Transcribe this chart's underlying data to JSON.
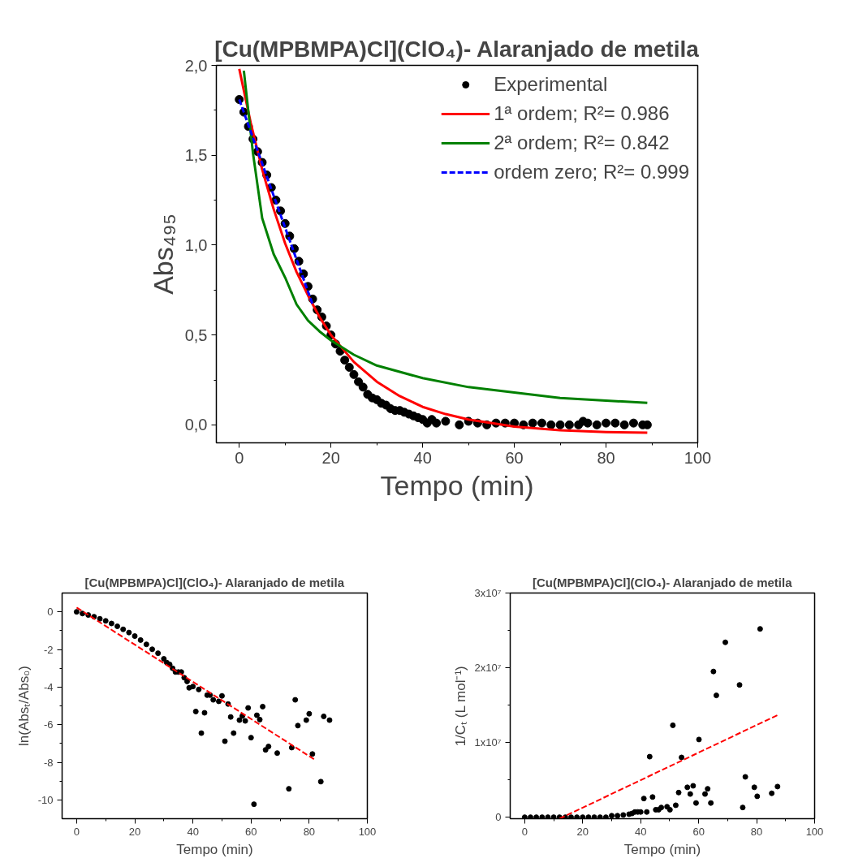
{
  "chart_data": [
    {
      "type": "scatter",
      "title": "[Cu(MPBMPA)Cl](ClO₄)- Alaranjado de metila",
      "xlabel": "Tempo (min)",
      "ylabel": "Abs₄₉₅",
      "xlim": [
        -5,
        100
      ],
      "ylim": [
        -0.1,
        2.0
      ],
      "xticks": [
        0,
        20,
        40,
        60,
        80,
        100
      ],
      "yticks": [
        {
          "value": 0,
          "label": "0,0"
        },
        {
          "value": 0.5,
          "label": "0,5"
        },
        {
          "value": 1.0,
          "label": "1,0"
        },
        {
          "value": 1.5,
          "label": "1,5"
        },
        {
          "value": 2.0,
          "label": "2,0"
        }
      ],
      "grid": false,
      "legend": "top right",
      "series": [
        {
          "name": "Experimental",
          "marker": "circle",
          "color": "#000000",
          "x": [
            0,
            1,
            2,
            3,
            4,
            5,
            6,
            7,
            8,
            9,
            10,
            11,
            12,
            13,
            14,
            15,
            16,
            17,
            18,
            19,
            20,
            21,
            22,
            23,
            24,
            25,
            26,
            27,
            28,
            29,
            30,
            31,
            32,
            33,
            34,
            35,
            36,
            37,
            38,
            39,
            40,
            41,
            42,
            43,
            45,
            48,
            50,
            52,
            54,
            56,
            58,
            60,
            62,
            64,
            66,
            68,
            70,
            72,
            74,
            75,
            76,
            78,
            80,
            82,
            84,
            86,
            88,
            89
          ],
          "values": [
            1.81,
            1.74,
            1.66,
            1.59,
            1.52,
            1.46,
            1.39,
            1.32,
            1.25,
            1.19,
            1.12,
            1.05,
            0.98,
            0.91,
            0.84,
            0.77,
            0.7,
            0.64,
            0.6,
            0.55,
            0.5,
            0.45,
            0.41,
            0.36,
            0.32,
            0.28,
            0.24,
            0.21,
            0.17,
            0.15,
            0.14,
            0.12,
            0.11,
            0.09,
            0.08,
            0.08,
            0.07,
            0.06,
            0.05,
            0.04,
            0.03,
            0.01,
            0.03,
            0.01,
            0.02,
            0.0,
            0.02,
            0.01,
            0.0,
            0.01,
            0.01,
            0.01,
            0.0,
            0.01,
            0.01,
            0.0,
            0.0,
            0.0,
            0.0,
            0.02,
            0.01,
            0.0,
            0.01,
            0.01,
            0.0,
            0.01,
            0.0,
            0.0
          ]
        },
        {
          "name": "1ª ordem; R²= 0.986",
          "type": "line",
          "line_style": "solid",
          "color": "#ff0000",
          "x": [
            0,
            2.5,
            5,
            7.5,
            10,
            12.5,
            15,
            17.5,
            20,
            25,
            30,
            35,
            40,
            45,
            50,
            60,
            70,
            80,
            89
          ],
          "values": [
            1.98,
            1.68,
            1.42,
            1.2,
            1.01,
            0.85,
            0.72,
            0.6,
            0.5,
            0.35,
            0.24,
            0.16,
            0.1,
            0.06,
            0.03,
            -0.01,
            -0.03,
            -0.04,
            -0.044
          ]
        },
        {
          "name": "2ª ordem; R²= 0.842",
          "type": "line",
          "line_style": "solid",
          "color": "#008000",
          "x": [
            1,
            2,
            3,
            4,
            5,
            7.5,
            10,
            12.5,
            15,
            17.5,
            20,
            25,
            30,
            40,
            50,
            60,
            70,
            80,
            89
          ],
          "values": [
            1.97,
            1.74,
            1.51,
            1.33,
            1.15,
            0.95,
            0.82,
            0.67,
            0.58,
            0.52,
            0.47,
            0.39,
            0.33,
            0.26,
            0.21,
            0.18,
            0.15,
            0.135,
            0.122
          ]
        },
        {
          "name": "ordem zero; R²= 0.999",
          "type": "line",
          "line_style": "dashed",
          "color": "#0000ff",
          "x": [
            0,
            16
          ],
          "values": [
            1.81,
            0.67
          ]
        }
      ]
    },
    {
      "type": "scatter",
      "title": "[Cu(MPBMPA)Cl](ClO₄)- Alaranjado de metila",
      "xlabel": "Tempo (min)",
      "ylabel": "ln(Absₜ/Abs₀)",
      "xlim": [
        -5,
        100
      ],
      "ylim": [
        -11,
        1
      ],
      "xticks": [
        0,
        20,
        40,
        60,
        80,
        100
      ],
      "yticks": [
        0,
        -2,
        -4,
        -6,
        -8,
        -10
      ],
      "grid": false,
      "legend": false,
      "series": [
        {
          "marker": "circle",
          "color": "#000000",
          "x": [
            0,
            2,
            4,
            6,
            8,
            10,
            12,
            14,
            16,
            18,
            20,
            22,
            24,
            26,
            28,
            30,
            31,
            32,
            33,
            34,
            35,
            36,
            37,
            38,
            38.7,
            40,
            41,
            42,
            42.9,
            44,
            44.9,
            45.9,
            47,
            48.9,
            50,
            51,
            52.1,
            53,
            54,
            56,
            57,
            58,
            59,
            60,
            61,
            62,
            63,
            64,
            65,
            66,
            69,
            73,
            74,
            75.2,
            76.1,
            79,
            80,
            81.1,
            84,
            85,
            87
          ],
          "values": [
            0,
            -0.09,
            -0.17,
            -0.26,
            -0.37,
            -0.48,
            -0.62,
            -0.77,
            -0.93,
            -1.1,
            -1.29,
            -1.5,
            -1.73,
            -1.99,
            -2.2,
            -2.5,
            -2.7,
            -2.8,
            -3.0,
            -3.2,
            -3.2,
            -3.2,
            -3.5,
            -3.7,
            -4.04,
            -3.97,
            -5.3,
            -4.13,
            -6.45,
            -5.37,
            -4.43,
            -4.43,
            -4.68,
            -4.76,
            -4.47,
            -6.88,
            -4.9,
            -5.59,
            -6.45,
            -5.76,
            -5.54,
            -5.8,
            -5.11,
            -6.69,
            -10.23,
            -5.5,
            -5.73,
            -5.04,
            -7.34,
            -7.16,
            -7.51,
            -9.41,
            -7.22,
            -4.68,
            -6.05,
            -5.76,
            -5.42,
            -7.56,
            -9.03,
            -5.56,
            -5.76
          ]
        },
        {
          "type": "line",
          "line_style": "dashed",
          "color": "#ff0000",
          "x": [
            0,
            82.1
          ],
          "values": [
            0.23,
            -7.88
          ]
        }
      ]
    },
    {
      "type": "scatter",
      "title": "[Cu(MPBMPA)Cl](ClO₄)- Alaranjado de metila",
      "xlabel": "Tempo (min)",
      "ylabel": "1/Cₜ (L mol⁻¹)",
      "xlim": [
        -5,
        100
      ],
      "ylim": [
        -200000,
        30000000
      ],
      "xticks": [
        0,
        20,
        40,
        60,
        80,
        100
      ],
      "yticks": [
        0,
        {
          "value": 10000000,
          "label": "1x10⁷"
        },
        {
          "value": 20000000,
          "label": "2x10⁷"
        },
        {
          "value": 30000000,
          "label": "3x10⁷"
        }
      ],
      "grid": false,
      "legend": false,
      "series": [
        {
          "marker": "circle",
          "color": "#000000",
          "x": [
            0,
            2,
            4,
            6,
            8,
            10,
            12,
            14,
            16,
            18,
            20,
            22,
            24,
            26,
            28,
            30,
            32,
            34,
            36,
            37,
            38,
            39,
            40,
            41.1,
            42.1,
            43.1,
            44.1,
            45.2,
            46.2,
            47.1,
            49.1,
            50.1,
            51.1,
            52.1,
            53.1,
            54.1,
            56.1,
            57.1,
            58.1,
            59.1,
            60.1,
            62.2,
            63.1,
            64.2,
            65.1,
            66.1,
            69.2,
            74.1,
            75.2,
            76.1,
            79.2,
            80.2,
            81.2,
            85.2,
            87.2
          ],
          "values": [
            0,
            0,
            0,
            0,
            0,
            0,
            0,
            0,
            0,
            0,
            0,
            0,
            0,
            0,
            0,
            200000,
            200000,
            300000,
            400000,
            500000,
            700000,
            700000,
            700000,
            2500000,
            700000,
            8100000,
            2700000,
            1000000,
            1000000,
            1300000,
            1400000,
            1000000,
            12300000,
            1600000,
            3300000,
            8000000,
            4000000,
            3100000,
            4200000,
            1900000,
            10400000,
            3100000,
            3800000,
            1900000,
            19500000,
            16300000,
            23400000,
            17700000,
            1300000,
            5400000,
            4000000,
            2800000,
            25200000,
            3200000,
            4100000
          ]
        },
        {
          "type": "line",
          "line_style": "dashed",
          "color": "#ff0000",
          "x": [
            12,
            87.4
          ],
          "values": [
            -200000,
            13700000
          ]
        }
      ]
    }
  ]
}
